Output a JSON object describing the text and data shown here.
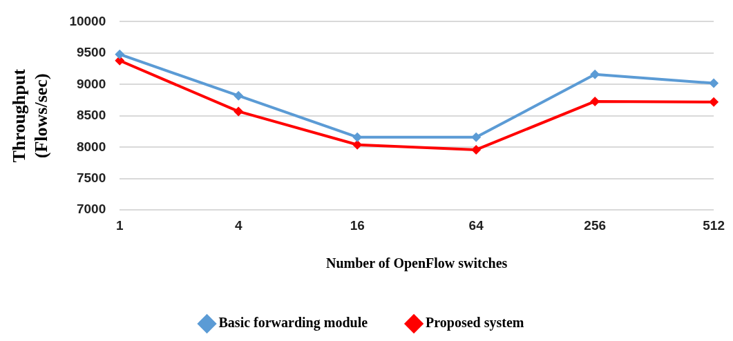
{
  "chart_data": {
    "type": "line",
    "xlabel": "Number of OpenFlow switches",
    "ylabel": "Throughput (Flows/sec)",
    "categories": [
      "1",
      "4",
      "16",
      "64",
      "256",
      "512"
    ],
    "series": [
      {
        "name": "Basic forwarding module",
        "color": "#5b9bd5",
        "values": [
          9480,
          8820,
          8160,
          8160,
          9160,
          9020
        ]
      },
      {
        "name": "Proposed system",
        "color": "#ff0000",
        "values": [
          9380,
          8570,
          8040,
          7960,
          8730,
          8720
        ]
      }
    ],
    "ylim": [
      7000,
      10000
    ],
    "yticks": [
      7000,
      7500,
      8000,
      8500,
      9000,
      9500,
      10000
    ],
    "grid": "y",
    "legend": "bottom",
    "marker": "diamond",
    "line_style": "solid"
  }
}
